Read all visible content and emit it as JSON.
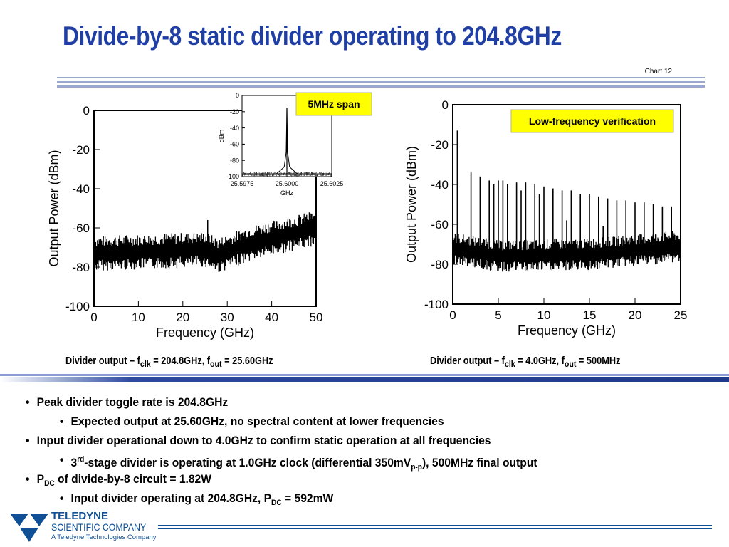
{
  "slide": {
    "title": "Divide-by-8 static divider operating to 204.8GHz",
    "chart_id": "Chart 12"
  },
  "chart_data": [
    {
      "type": "line",
      "xlabel": "Frequency (GHz)",
      "ylabel": "Output Power (dBm)",
      "xlim": [
        0,
        50
      ],
      "ylim": [
        -100,
        0
      ],
      "x_ticks": [
        0,
        10,
        20,
        30,
        40,
        50
      ],
      "y_ticks": [
        0,
        -20,
        -40,
        -60,
        -80,
        -100
      ],
      "noise_floor": [
        [
          0,
          -73
        ],
        [
          25,
          -71
        ],
        [
          28,
          -74
        ],
        [
          35,
          -68
        ],
        [
          50,
          -60
        ]
      ],
      "peak": {
        "x": 25.6,
        "y": -56
      },
      "caption_parts": {
        "prefix": "Divider output – f",
        "sub1": "clk",
        "mid": " = 204.8GHz, f",
        "sub2": "out",
        "suffix": " = 25.60GHz"
      }
    },
    {
      "type": "line",
      "xlabel": "GHz",
      "ylabel": "dBm",
      "annotation": "5MHz span",
      "xlim": [
        25.5975,
        25.6025
      ],
      "ylim": [
        -100,
        0
      ],
      "x_ticks": [
        25.5975,
        25.6,
        25.6025
      ],
      "x_tick_labels": [
        "25.5975",
        "25.6000",
        "25.6025"
      ],
      "y_ticks": [
        0,
        -20,
        -40,
        -60,
        -80,
        -100
      ],
      "noise_floor": [
        [
          25.5975,
          -97
        ],
        [
          25.6025,
          -97
        ]
      ],
      "peak": {
        "x": 25.6,
        "y": -15
      }
    },
    {
      "type": "line",
      "xlabel": "Frequency (GHz)",
      "ylabel": "Output Power (dBm)",
      "annotation": "Low-frequency verification",
      "xlim": [
        0,
        25
      ],
      "ylim": [
        -100,
        0
      ],
      "x_ticks": [
        0,
        5,
        10,
        15,
        20,
        25
      ],
      "y_ticks": [
        0,
        -20,
        -40,
        -60,
        -80,
        -100
      ],
      "noise_floor": [
        [
          0,
          -72
        ],
        [
          5,
          -76
        ],
        [
          15,
          -75
        ],
        [
          25,
          -71
        ]
      ],
      "peaks": [
        [
          0.5,
          -13
        ],
        [
          2.0,
          -34
        ],
        [
          3.0,
          -36
        ],
        [
          4.0,
          -38
        ],
        [
          4.5,
          -40
        ],
        [
          5.0,
          -38
        ],
        [
          5.5,
          -38
        ],
        [
          6.0,
          -40
        ],
        [
          7.0,
          -39
        ],
        [
          7.5,
          -43
        ],
        [
          8.0,
          -39
        ],
        [
          9.0,
          -40
        ],
        [
          9.5,
          -45
        ],
        [
          10.0,
          -41
        ],
        [
          11.0,
          -42
        ],
        [
          12.0,
          -43
        ],
        [
          12.5,
          -58
        ],
        [
          13.0,
          -43
        ],
        [
          14.0,
          -45
        ],
        [
          15.0,
          -45
        ],
        [
          16.0,
          -46
        ],
        [
          16.5,
          -61
        ],
        [
          17.0,
          -47
        ],
        [
          18.0,
          -48
        ],
        [
          19.0,
          -48
        ],
        [
          20.0,
          -49
        ],
        [
          21.0,
          -49
        ],
        [
          22.0,
          -50
        ],
        [
          23.0,
          -51
        ],
        [
          24.0,
          -51
        ]
      ],
      "caption_parts": {
        "prefix": "Divider output – f",
        "sub1": "clk",
        "mid": " = 4.0GHz, f",
        "sub2": "out",
        "suffix": " = 500MHz"
      }
    }
  ],
  "bullets": [
    {
      "level": 1,
      "parts": [
        {
          "t": "Peak divider toggle rate is 204.8GHz"
        }
      ]
    },
    {
      "level": 2,
      "parts": [
        {
          "t": "Expected output at 25.60GHz, no spectral content at lower frequencies"
        }
      ]
    },
    {
      "level": 1,
      "parts": [
        {
          "t": "Input divider operational down to 4.0GHz to confirm static operation at all frequencies"
        }
      ]
    },
    {
      "level": 2,
      "parts": [
        {
          "t": "3"
        },
        {
          "t": "rd",
          "sup": true
        },
        {
          "t": "-stage divider is operating at 1.0GHz clock (differential 350mV"
        },
        {
          "t": "p-p",
          "sub": true
        },
        {
          "t": "), 500MHz final output"
        }
      ]
    },
    {
      "level": 1,
      "parts": [
        {
          "t": "P"
        },
        {
          "t": "DC",
          "sub": true
        },
        {
          "t": " of divide-by-8 circuit = 1.82W"
        }
      ]
    },
    {
      "level": 2,
      "parts": [
        {
          "t": "Input divider operating at 204.8GHz, P"
        },
        {
          "t": "DC",
          "sub": true
        },
        {
          "t": " = 592mW"
        }
      ]
    }
  ],
  "logo": {
    "line1": "TELEDYNE",
    "line2": "SCIENTIFIC COMPANY",
    "line3": "A Teledyne Technologies Company"
  },
  "colors": {
    "title": "#1f3fa5",
    "rule": "#9aa8cf",
    "band": "#1e3a8a",
    "callout_bg": "#ffff00",
    "logo": "#0f4f96"
  }
}
